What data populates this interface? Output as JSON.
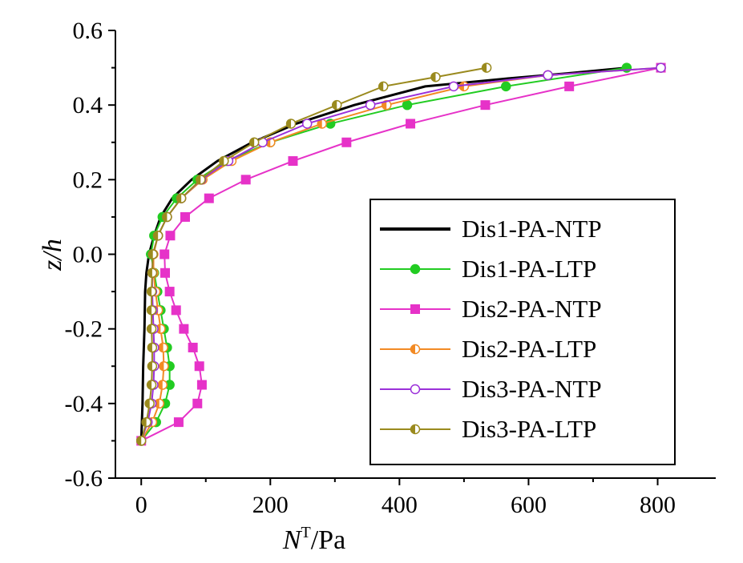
{
  "chart_data": {
    "type": "line",
    "title": "",
    "xlabel": {
      "symbol": "N",
      "superscript": "T",
      "unit": "/Pa"
    },
    "ylabel": {
      "symbol": "z",
      "rest": "/h"
    },
    "xlim": [
      -40,
      890
    ],
    "ylim": [
      -0.6,
      0.6
    ],
    "x_ticks": [
      0,
      200,
      400,
      600,
      800
    ],
    "x_tick_labels": [
      "0",
      "200",
      "400",
      "600",
      "800"
    ],
    "y_ticks": [
      -0.6,
      -0.4,
      -0.2,
      0.0,
      0.2,
      0.4,
      0.6
    ],
    "y_tick_labels": [
      "-0.6",
      "-0.4",
      "-0.2",
      "0.0",
      "0.2",
      "0.4",
      "0.6"
    ],
    "grid": false,
    "legend_position": "lower-right",
    "series": [
      {
        "name": "Dis1-PA-NTP",
        "color": "#000000",
        "marker": "none",
        "points": [
          [
            0,
            -0.5
          ],
          [
            2,
            -0.4
          ],
          [
            3,
            -0.3
          ],
          [
            5,
            -0.2
          ],
          [
            6,
            -0.1
          ],
          [
            8,
            -0.05
          ],
          [
            12,
            0
          ],
          [
            20,
            0.05
          ],
          [
            30,
            0.1
          ],
          [
            48,
            0.15
          ],
          [
            78,
            0.2
          ],
          [
            118,
            0.25
          ],
          [
            172,
            0.3
          ],
          [
            240,
            0.35
          ],
          [
            330,
            0.4
          ],
          [
            440,
            0.45
          ],
          [
            560,
            0.47
          ],
          [
            660,
            0.485
          ],
          [
            752,
            0.5
          ]
        ]
      },
      {
        "name": "Dis1-PA-LTP",
        "color": "#22cc22",
        "marker": "circle",
        "points": [
          [
            0,
            -0.5
          ],
          [
            23,
            -0.45
          ],
          [
            37,
            -0.4
          ],
          [
            44,
            -0.35
          ],
          [
            44,
            -0.3
          ],
          [
            40,
            -0.25
          ],
          [
            35,
            -0.2
          ],
          [
            30,
            -0.15
          ],
          [
            25,
            -0.1
          ],
          [
            20,
            -0.05
          ],
          [
            15,
            0
          ],
          [
            20,
            0.05
          ],
          [
            33,
            0.1
          ],
          [
            55,
            0.15
          ],
          [
            87,
            0.2
          ],
          [
            132,
            0.25
          ],
          [
            200,
            0.3
          ],
          [
            293,
            0.35
          ],
          [
            412,
            0.4
          ],
          [
            565,
            0.45
          ],
          [
            752,
            0.5
          ]
        ]
      },
      {
        "name": "Dis2-PA-NTP",
        "color": "#e632c8",
        "marker": "square",
        "points": [
          [
            0,
            -0.5
          ],
          [
            58,
            -0.45
          ],
          [
            87,
            -0.4
          ],
          [
            94,
            -0.35
          ],
          [
            90,
            -0.3
          ],
          [
            80,
            -0.25
          ],
          [
            66,
            -0.2
          ],
          [
            54,
            -0.15
          ],
          [
            44,
            -0.1
          ],
          [
            37,
            -0.05
          ],
          [
            36,
            0
          ],
          [
            45,
            0.05
          ],
          [
            68,
            0.1
          ],
          [
            105,
            0.15
          ],
          [
            162,
            0.2
          ],
          [
            235,
            0.25
          ],
          [
            318,
            0.3
          ],
          [
            417,
            0.35
          ],
          [
            533,
            0.4
          ],
          [
            663,
            0.45
          ],
          [
            805,
            0.5
          ]
        ]
      },
      {
        "name": "Dis2-PA-LTP",
        "color": "#f28a24",
        "marker": "circle-half",
        "points": [
          [
            0,
            -0.5
          ],
          [
            17,
            -0.45
          ],
          [
            28,
            -0.4
          ],
          [
            33,
            -0.35
          ],
          [
            35,
            -0.3
          ],
          [
            34,
            -0.25
          ],
          [
            30,
            -0.2
          ],
          [
            26,
            -0.15
          ],
          [
            22,
            -0.1
          ],
          [
            19,
            -0.05
          ],
          [
            19,
            0
          ],
          [
            26,
            0.05
          ],
          [
            40,
            0.1
          ],
          [
            62,
            0.15
          ],
          [
            95,
            0.2
          ],
          [
            140,
            0.25
          ],
          [
            200,
            0.3
          ],
          [
            280,
            0.35
          ],
          [
            380,
            0.4
          ],
          [
            500,
            0.45
          ],
          [
            630,
            0.48
          ],
          [
            805,
            0.5
          ]
        ]
      },
      {
        "name": "Dis3-PA-NTP",
        "color": "#9b30d9",
        "marker": "circle-open",
        "points": [
          [
            0,
            -0.5
          ],
          [
            10,
            -0.45
          ],
          [
            16,
            -0.4
          ],
          [
            19,
            -0.35
          ],
          [
            20,
            -0.3
          ],
          [
            20,
            -0.25
          ],
          [
            19,
            -0.2
          ],
          [
            18,
            -0.15
          ],
          [
            17,
            -0.1
          ],
          [
            17,
            -0.05
          ],
          [
            18,
            0
          ],
          [
            26,
            0.05
          ],
          [
            40,
            0.1
          ],
          [
            62,
            0.15
          ],
          [
            93,
            0.2
          ],
          [
            135,
            0.25
          ],
          [
            188,
            0.3
          ],
          [
            257,
            0.35
          ],
          [
            355,
            0.4
          ],
          [
            484,
            0.45
          ],
          [
            630,
            0.48
          ],
          [
            805,
            0.5
          ]
        ]
      },
      {
        "name": "Dis3-PA-LTP",
        "color": "#9a8a1e",
        "marker": "circle-half",
        "points": [
          [
            0,
            -0.5
          ],
          [
            8,
            -0.45
          ],
          [
            13,
            -0.4
          ],
          [
            16,
            -0.35
          ],
          [
            17,
            -0.3
          ],
          [
            17,
            -0.25
          ],
          [
            16,
            -0.2
          ],
          [
            16,
            -0.15
          ],
          [
            16,
            -0.1
          ],
          [
            17,
            -0.05
          ],
          [
            18,
            0
          ],
          [
            26,
            0.05
          ],
          [
            40,
            0.1
          ],
          [
            62,
            0.15
          ],
          [
            92,
            0.2
          ],
          [
            128,
            0.25
          ],
          [
            175,
            0.3
          ],
          [
            232,
            0.35
          ],
          [
            303,
            0.4
          ],
          [
            375,
            0.45
          ],
          [
            456,
            0.475
          ],
          [
            535,
            0.5
          ]
        ]
      }
    ]
  }
}
